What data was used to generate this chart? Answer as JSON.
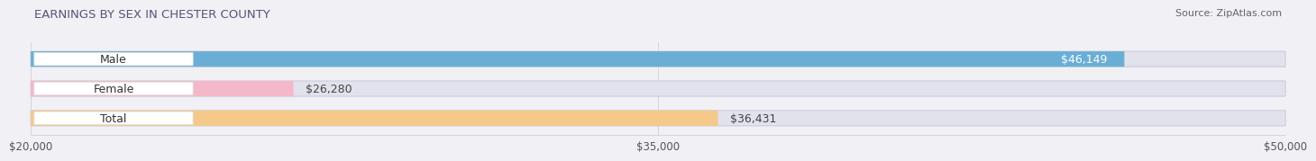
{
  "title": "EARNINGS BY SEX IN CHESTER COUNTY",
  "source": "Source: ZipAtlas.com",
  "categories": [
    "Male",
    "Female",
    "Total"
  ],
  "values": [
    46149,
    26280,
    36431
  ],
  "bar_colors": [
    "#6aaed6",
    "#f4b8c8",
    "#f5c98a"
  ],
  "x_min": 20000,
  "x_max": 50000,
  "x_ticks": [
    20000,
    35000,
    50000
  ],
  "x_tick_labels": [
    "$20,000",
    "$35,000",
    "$50,000"
  ],
  "bar_height": 0.52,
  "bg_color": "#f0f0f5",
  "bar_bg_color": "#e2e2ec",
  "title_fontsize": 9.5,
  "source_fontsize": 8,
  "label_fontsize": 9,
  "value_fontsize": 9,
  "tick_fontsize": 8.5,
  "badge_color": "#ffffff",
  "badge_edge_color": "#dddddd"
}
